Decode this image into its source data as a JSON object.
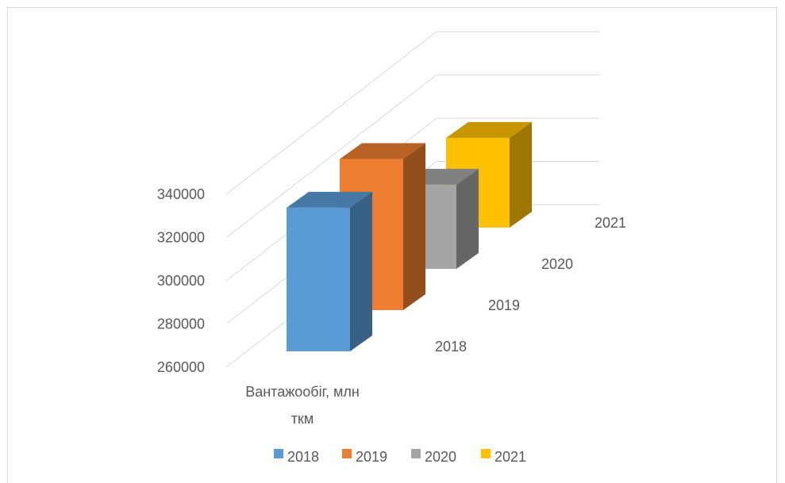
{
  "chart_data": {
    "type": "bar",
    "subtype": "3d-column",
    "title": "",
    "categories": [
      "Вантажообіг, млн ткм"
    ],
    "category_label_lines": [
      "Вантажообіг, млн",
      "ткм"
    ],
    "series": [
      {
        "name": "2018",
        "values": [
          333000
        ],
        "color": "#5b9bd5"
      },
      {
        "name": "2019",
        "values": [
          337000
        ],
        "color": "#ed7d31"
      },
      {
        "name": "2020",
        "values": [
          301000
        ],
        "color": "#a5a5a5"
      },
      {
        "name": "2021",
        "values": [
          304000
        ],
        "color": "#ffc000"
      }
    ],
    "depth_labels": [
      "2018",
      "2019",
      "2020",
      "2021"
    ],
    "ylim": [
      260000,
      340000
    ],
    "yticks": [
      "260000",
      "280000",
      "300000",
      "320000",
      "340000"
    ],
    "legend_position": "bottom",
    "grid": true
  }
}
